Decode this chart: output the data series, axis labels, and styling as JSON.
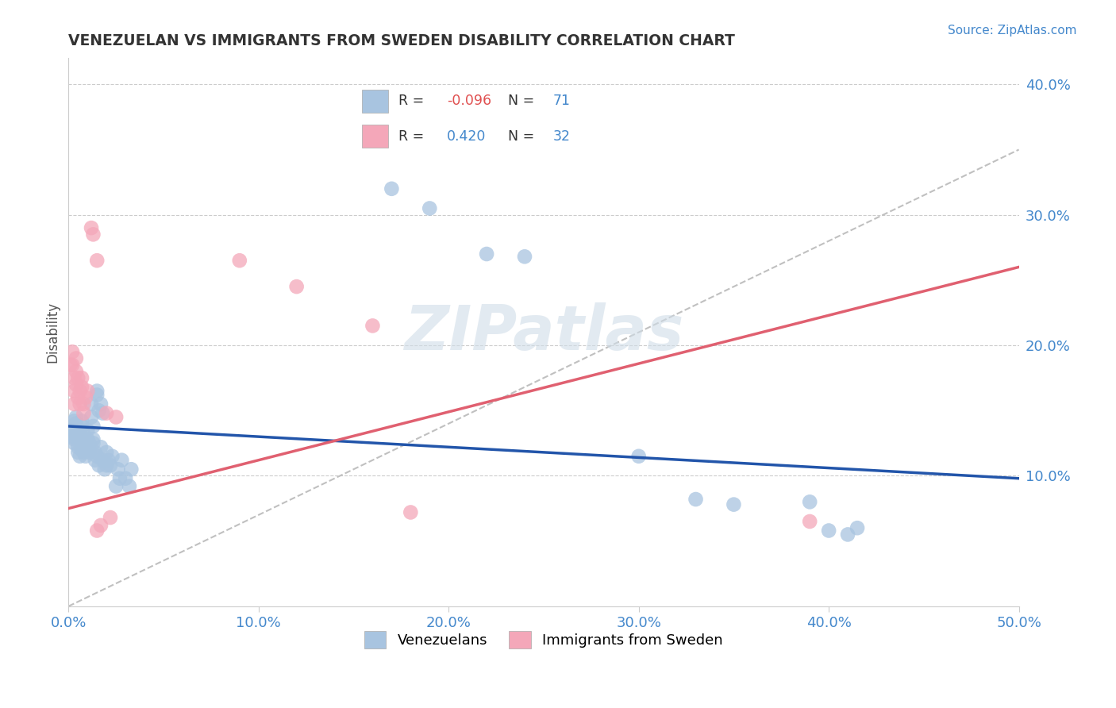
{
  "title": "VENEZUELAN VS IMMIGRANTS FROM SWEDEN DISABILITY CORRELATION CHART",
  "source": "Source: ZipAtlas.com",
  "ylabel": "Disability",
  "xlim": [
    0.0,
    0.5
  ],
  "ylim": [
    0.0,
    0.42
  ],
  "xtick_labels": [
    "0.0%",
    "10.0%",
    "20.0%",
    "30.0%",
    "40.0%",
    "50.0%"
  ],
  "xtick_vals": [
    0.0,
    0.1,
    0.2,
    0.3,
    0.4,
    0.5
  ],
  "ytick_labels": [
    "10.0%",
    "20.0%",
    "30.0%",
    "40.0%"
  ],
  "ytick_vals": [
    0.1,
    0.2,
    0.3,
    0.4
  ],
  "legend_bottom_label1": "Venezuelans",
  "legend_bottom_label2": "Immigrants from Sweden",
  "venezuelan_color": "#a8c4e0",
  "sweden_color": "#f4a7b9",
  "trend_venezuelan_color": "#2255aa",
  "trend_sweden_color": "#e06070",
  "trend_dashed_color": "#c0c0c0",
  "venezuelan_trend_x": [
    0.0,
    0.5
  ],
  "venezuelan_trend_y": [
    0.138,
    0.098
  ],
  "sweden_trend_x": [
    0.0,
    0.5
  ],
  "sweden_trend_y": [
    0.075,
    0.26
  ],
  "venezuelan_points": [
    [
      0.001,
      0.135
    ],
    [
      0.002,
      0.13
    ],
    [
      0.002,
      0.138
    ],
    [
      0.003,
      0.142
    ],
    [
      0.003,
      0.128
    ],
    [
      0.003,
      0.125
    ],
    [
      0.004,
      0.132
    ],
    [
      0.004,
      0.145
    ],
    [
      0.004,
      0.14
    ],
    [
      0.005,
      0.118
    ],
    [
      0.005,
      0.135
    ],
    [
      0.005,
      0.13
    ],
    [
      0.005,
      0.122
    ],
    [
      0.006,
      0.115
    ],
    [
      0.006,
      0.128
    ],
    [
      0.006,
      0.135
    ],
    [
      0.007,
      0.142
    ],
    [
      0.007,
      0.138
    ],
    [
      0.007,
      0.12
    ],
    [
      0.007,
      0.125
    ],
    [
      0.008,
      0.118
    ],
    [
      0.008,
      0.132
    ],
    [
      0.008,
      0.128
    ],
    [
      0.009,
      0.115
    ],
    [
      0.009,
      0.122
    ],
    [
      0.01,
      0.135
    ],
    [
      0.01,
      0.128
    ],
    [
      0.01,
      0.12
    ],
    [
      0.011,
      0.125
    ],
    [
      0.011,
      0.118
    ],
    [
      0.012,
      0.155
    ],
    [
      0.012,
      0.145
    ],
    [
      0.013,
      0.138
    ],
    [
      0.013,
      0.128
    ],
    [
      0.013,
      0.125
    ],
    [
      0.014,
      0.118
    ],
    [
      0.014,
      0.112
    ],
    [
      0.015,
      0.165
    ],
    [
      0.015,
      0.162
    ],
    [
      0.015,
      0.115
    ],
    [
      0.016,
      0.15
    ],
    [
      0.016,
      0.108
    ],
    [
      0.017,
      0.155
    ],
    [
      0.017,
      0.122
    ],
    [
      0.018,
      0.148
    ],
    [
      0.018,
      0.112
    ],
    [
      0.019,
      0.105
    ],
    [
      0.02,
      0.118
    ],
    [
      0.02,
      0.108
    ],
    [
      0.021,
      0.112
    ],
    [
      0.022,
      0.108
    ],
    [
      0.023,
      0.115
    ],
    [
      0.025,
      0.092
    ],
    [
      0.026,
      0.105
    ],
    [
      0.027,
      0.098
    ],
    [
      0.028,
      0.112
    ],
    [
      0.03,
      0.098
    ],
    [
      0.032,
      0.092
    ],
    [
      0.033,
      0.105
    ],
    [
      0.17,
      0.32
    ],
    [
      0.19,
      0.305
    ],
    [
      0.22,
      0.27
    ],
    [
      0.24,
      0.268
    ],
    [
      0.3,
      0.115
    ],
    [
      0.33,
      0.082
    ],
    [
      0.35,
      0.078
    ],
    [
      0.39,
      0.08
    ],
    [
      0.4,
      0.058
    ],
    [
      0.41,
      0.055
    ],
    [
      0.415,
      0.06
    ]
  ],
  "sweden_points": [
    [
      0.001,
      0.185
    ],
    [
      0.002,
      0.195
    ],
    [
      0.002,
      0.185
    ],
    [
      0.003,
      0.175
    ],
    [
      0.003,
      0.165
    ],
    [
      0.003,
      0.155
    ],
    [
      0.004,
      0.19
    ],
    [
      0.004,
      0.18
    ],
    [
      0.004,
      0.17
    ],
    [
      0.005,
      0.175
    ],
    [
      0.005,
      0.16
    ],
    [
      0.006,
      0.165
    ],
    [
      0.006,
      0.155
    ],
    [
      0.007,
      0.175
    ],
    [
      0.007,
      0.168
    ],
    [
      0.008,
      0.155
    ],
    [
      0.008,
      0.148
    ],
    [
      0.009,
      0.16
    ],
    [
      0.01,
      0.165
    ],
    [
      0.012,
      0.29
    ],
    [
      0.013,
      0.285
    ],
    [
      0.015,
      0.265
    ],
    [
      0.015,
      0.058
    ],
    [
      0.017,
      0.062
    ],
    [
      0.02,
      0.148
    ],
    [
      0.022,
      0.068
    ],
    [
      0.025,
      0.145
    ],
    [
      0.09,
      0.265
    ],
    [
      0.12,
      0.245
    ],
    [
      0.16,
      0.215
    ],
    [
      0.18,
      0.072
    ],
    [
      0.39,
      0.065
    ]
  ]
}
